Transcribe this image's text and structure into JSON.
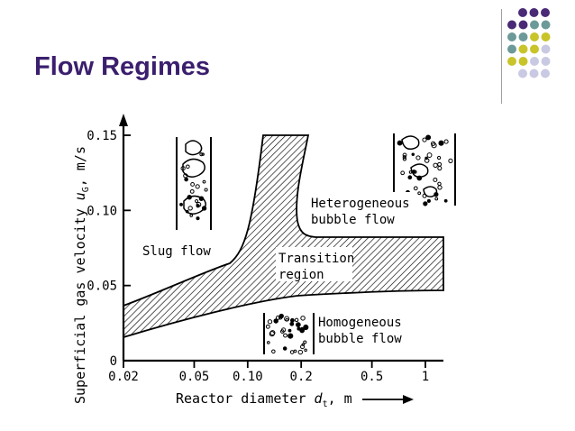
{
  "slide": {
    "title": "Flow Regimes",
    "colors": {
      "title": "#3b1f6e",
      "dot_purple": "#4a2a77",
      "dot_teal": "#6c9a98",
      "dot_yellow": "#c8c42a",
      "dot_lavender": "#c9c9e3"
    }
  },
  "chart_data": {
    "type": "diagram",
    "xlabel": "Reactor diameter",
    "xlabel_symbol": "d",
    "xlabel_subscript": "t",
    "xlabel_unit": ", m",
    "ylabel": "Superficial gas velocity",
    "ylabel_symbol": "u",
    "ylabel_subscript": "G",
    "ylabel_unit": ", m/s",
    "x_scale": "log",
    "xlim": [
      0.02,
      1.2
    ],
    "ylim": [
      0,
      0.16
    ],
    "x_ticks": [
      "0.02",
      "0.05",
      "0.10",
      "0.2",
      "0.5",
      "1"
    ],
    "y_ticks": [
      "0",
      "0.05",
      "0.10",
      "0.15"
    ],
    "regions": [
      {
        "name": "Slug flow",
        "label_lines": [
          "Slug flow"
        ]
      },
      {
        "name": "Heterogeneous bubble flow",
        "label_lines": [
          "Heterogeneous",
          "bubble flow"
        ]
      },
      {
        "name": "Transition region",
        "label_lines": [
          "Transition",
          "region"
        ]
      },
      {
        "name": "Homogeneous bubble flow",
        "label_lines": [
          "Homogeneous",
          "bubble flow"
        ]
      }
    ]
  }
}
